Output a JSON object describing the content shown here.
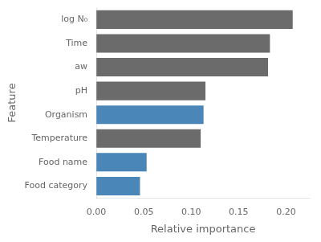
{
  "chart_data": {
    "type": "bar",
    "orientation": "horizontal",
    "categories": [
      "log N₀",
      "Time",
      "aw",
      "pH",
      "Organism",
      "Temperature",
      "Food name",
      "Food category"
    ],
    "values": [
      0.207,
      0.183,
      0.181,
      0.115,
      0.113,
      0.11,
      0.053,
      0.046
    ],
    "colors": [
      "#6b6b6b",
      "#6b6b6b",
      "#6b6b6b",
      "#6b6b6b",
      "#4a86b8",
      "#6b6b6b",
      "#4a86b8",
      "#4a86b8"
    ],
    "x_label": "Relative importance",
    "y_label": "Feature",
    "xlim": [
      0,
      0.225
    ],
    "xticks": [
      {
        "value": 0,
        "label": "0.00"
      },
      0.05,
      {
        "value": 0.1,
        "label": "0.10"
      },
      0.15,
      {
        "value": 0.2,
        "label": "0.20"
      }
    ],
    "grid": false,
    "legend": false
  }
}
